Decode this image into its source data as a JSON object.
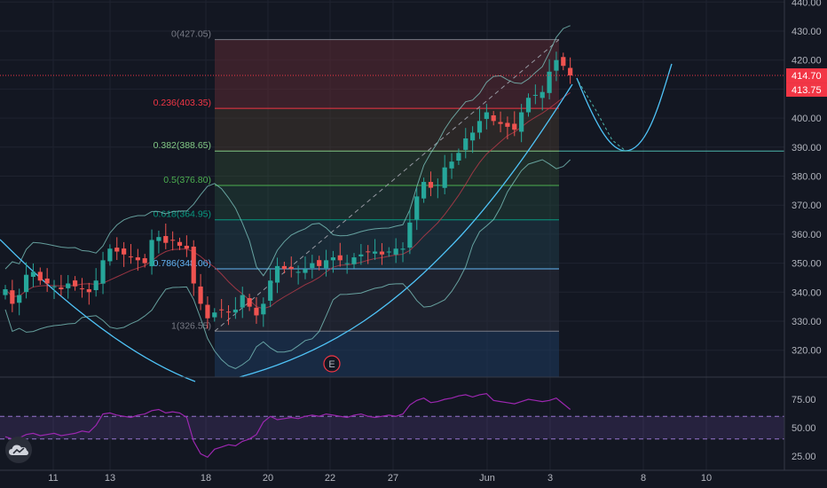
{
  "chart_data": [
    {
      "type": "candlestick",
      "title": "",
      "ylim": [
        310,
        440
      ],
      "price_ticks": [
        "440.00",
        "430.00",
        "420.00",
        "410.00",
        "400.00",
        "390.00",
        "380.00",
        "370.00",
        "360.00",
        "350.00",
        "340.00",
        "330.00",
        "320.00"
      ],
      "date_ticks": [
        "11",
        "13",
        "18",
        "20",
        "22",
        "27",
        "Jun",
        "3",
        "8",
        "10"
      ],
      "last_price": "414.70",
      "second_price": "413.75",
      "last_price_color": "#f23645",
      "candle_up_color": "#26a69a",
      "candle_down_color": "#ef5350",
      "fibonacci": [
        {
          "label": "0(427.05)",
          "value": 427.05,
          "color": "#787b86"
        },
        {
          "label": "0.236(403.35)",
          "value": 403.35,
          "color": "#f23645"
        },
        {
          "label": "0.382(388.65)",
          "value": 388.65,
          "color": "#81c784"
        },
        {
          "label": "0.5(376.80)",
          "value": 376.8,
          "color": "#4caf50"
        },
        {
          "label": "0.618(364.95)",
          "value": 364.95,
          "color": "#089981"
        },
        {
          "label": "0.786(348.06)",
          "value": 348.06,
          "color": "#64b5f6"
        },
        {
          "label": "1(326.55)",
          "value": 326.55,
          "color": "#787b86"
        }
      ],
      "closes": [
        341,
        336,
        339,
        346,
        347,
        344,
        343,
        342,
        341,
        343,
        342,
        341,
        340,
        344,
        351,
        355,
        354,
        353,
        352,
        351,
        350,
        358,
        359,
        357,
        358,
        356,
        355,
        343,
        336,
        331,
        333,
        334,
        333,
        334,
        339,
        335,
        332,
        336,
        344,
        349,
        348,
        348,
        347,
        348,
        350,
        349,
        351,
        352,
        351,
        350,
        352,
        353,
        354,
        354,
        353,
        354,
        355,
        355,
        364,
        373,
        378,
        376,
        377,
        383,
        385,
        388,
        393,
        395,
        399,
        402,
        399,
        398,
        397,
        396,
        402,
        407,
        408,
        409,
        416,
        420,
        418,
        414.7
      ],
      "earnings_marker": "E"
    },
    {
      "type": "line",
      "title": "",
      "ylim": [
        18,
        85
      ],
      "ticks": [
        "75.00",
        "50.00",
        "25.00"
      ],
      "bands": [
        40,
        60
      ],
      "line_color": "#9c27b0",
      "values": [
        42,
        40,
        41,
        44,
        45,
        43,
        44,
        45,
        43,
        44,
        45,
        47,
        46,
        52,
        62,
        63,
        61,
        60,
        59,
        61,
        62,
        65,
        66,
        63,
        64,
        63,
        59,
        38,
        27,
        24,
        31,
        33,
        35,
        34,
        38,
        40,
        44,
        55,
        60,
        57,
        58,
        59,
        58,
        60,
        61,
        60,
        62,
        61,
        60,
        59,
        61,
        62,
        60,
        59,
        60,
        61,
        60,
        62,
        70,
        74,
        76,
        72,
        73,
        75,
        76,
        78,
        79,
        77,
        79,
        80,
        74,
        73,
        72,
        71,
        73,
        75,
        74,
        73,
        74,
        76,
        71,
        66
      ]
    }
  ]
}
